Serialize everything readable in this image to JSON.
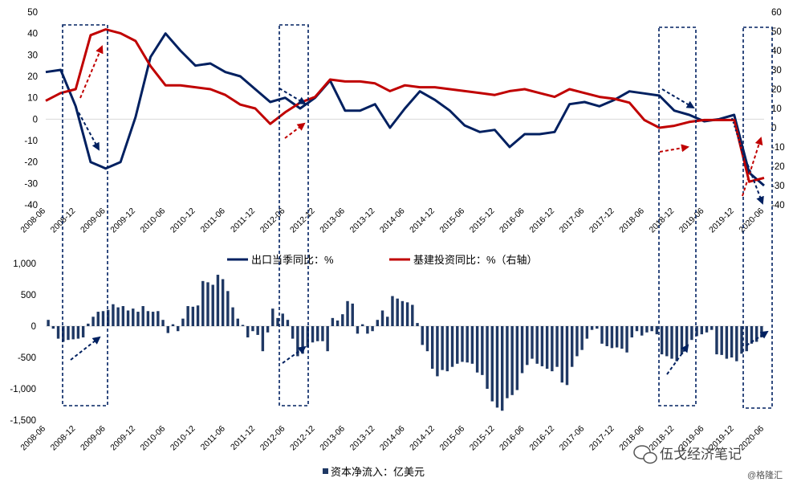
{
  "colors": {
    "export": "#002060",
    "infra": "#C00000",
    "capital": "#1F3864",
    "arrow_blue": "#002060",
    "arrow_red": "#C00000",
    "box": "#002060",
    "zero_line": "#D9D9D9"
  },
  "x_labels": [
    "2008-06",
    "2008-12",
    "2009-06",
    "2009-12",
    "2010-06",
    "2010-12",
    "2011-06",
    "2011-12",
    "2012-06",
    "2012-12",
    "2013-06",
    "2013-12",
    "2014-06",
    "2014-12",
    "2015-06",
    "2015-12",
    "2016-06",
    "2016-12",
    "2017-06",
    "2017-12",
    "2018-06",
    "2018-12",
    "2019-06",
    "2019-12",
    "2020-06"
  ],
  "watermark": {
    "main": "伍戈经济笔记",
    "sub": "@格隆汇",
    "icon": "wechat-icon"
  },
  "chart_data": [
    {
      "type": "line",
      "legend_placement": "bottom",
      "x": [
        "2008-06",
        "2008-09",
        "2008-12",
        "2009-03",
        "2009-06",
        "2009-09",
        "2009-12",
        "2010-03",
        "2010-06",
        "2010-09",
        "2010-12",
        "2011-03",
        "2011-06",
        "2011-09",
        "2011-12",
        "2012-03",
        "2012-06",
        "2012-09",
        "2012-12",
        "2013-03",
        "2013-06",
        "2013-09",
        "2013-12",
        "2014-03",
        "2014-06",
        "2014-09",
        "2014-12",
        "2015-03",
        "2015-06",
        "2015-09",
        "2015-12",
        "2016-03",
        "2016-06",
        "2016-09",
        "2016-12",
        "2017-03",
        "2017-06",
        "2017-09",
        "2017-12",
        "2018-03",
        "2018-06",
        "2018-09",
        "2018-12",
        "2019-03",
        "2019-06",
        "2019-09",
        "2019-12",
        "2020-03",
        "2020-06"
      ],
      "left_axis": {
        "ylim": [
          -40,
          50
        ],
        "ticks": [
          -40,
          -30,
          -20,
          -10,
          0,
          10,
          20,
          30,
          40,
          50
        ]
      },
      "right_axis": {
        "ylim": [
          -40,
          60
        ],
        "ticks": [
          -40,
          -30,
          -20,
          -10,
          0,
          10,
          20,
          30,
          40,
          50,
          60
        ]
      },
      "series": [
        {
          "name": "出口当季同比：%",
          "axis": "left",
          "color": "#002060",
          "values": [
            22,
            23,
            6,
            -20,
            -23,
            -20,
            1,
            29,
            40,
            32,
            25,
            26,
            22,
            20,
            14,
            8,
            10,
            5,
            10,
            18,
            4,
            4,
            7,
            -4,
            5,
            13,
            9,
            4,
            -3,
            -6,
            -5,
            -13,
            -7,
            -7,
            -6,
            7,
            8,
            6,
            9,
            13,
            12,
            11,
            4,
            2,
            -1,
            0,
            2,
            -25,
            -31
          ]
        },
        {
          "name": "基建投资同比：%（右轴）",
          "axis": "right",
          "color": "#C00000",
          "values": [
            14,
            18,
            20,
            48,
            51,
            49,
            45,
            32,
            22,
            22,
            21,
            20,
            17,
            12,
            10,
            2,
            8,
            13,
            16,
            25,
            24,
            24,
            23,
            19,
            22,
            21,
            21,
            20,
            19,
            18,
            17,
            19,
            20,
            18,
            16,
            20,
            18,
            16,
            15,
            13,
            4,
            0,
            1,
            3,
            4,
            4,
            4,
            -28,
            -26
          ]
        }
      ]
    },
    {
      "type": "bar",
      "legend_placement": "bottom",
      "ylim": [
        -1500,
        1000
      ],
      "ticks": [
        -1500,
        -1000,
        -500,
        0,
        500,
        1000
      ],
      "series": [
        {
          "name": "资本净流入：亿美元",
          "color": "#1F3864",
          "values": [
            100,
            -40,
            -200,
            -250,
            -220,
            -210,
            -200,
            -180,
            40,
            150,
            230,
            240,
            260,
            350,
            300,
            320,
            250,
            280,
            230,
            320,
            240,
            230,
            240,
            100,
            -110,
            30,
            -80,
            120,
            320,
            310,
            330,
            720,
            700,
            660,
            820,
            750,
            560,
            300,
            120,
            20,
            -180,
            -80,
            -140,
            -400,
            -100,
            280,
            130,
            200,
            100,
            -200,
            -480,
            -440,
            -340,
            -260,
            -240,
            -240,
            -400,
            130,
            90,
            190,
            400,
            360,
            -120,
            30,
            -120,
            -80,
            100,
            250,
            150,
            480,
            440,
            400,
            380,
            340,
            50,
            -300,
            -400,
            -680,
            -800,
            -700,
            -720,
            -650,
            -600,
            -570,
            -580,
            -600,
            -740,
            -780,
            -1000,
            -1200,
            -1300,
            -1350,
            -1150,
            -1100,
            -1020,
            -750,
            -620,
            -520,
            -600,
            -640,
            -680,
            -720,
            -650,
            -900,
            -940,
            -650,
            -480,
            -380,
            -200,
            -60,
            -40,
            -280,
            -320,
            -350,
            -340,
            -360,
            -420,
            -180,
            -80,
            -150,
            -100,
            -80,
            -130,
            -450,
            -480,
            -520,
            -560,
            -450,
            -340,
            -220,
            -160,
            -130,
            -100,
            -60,
            -450,
            -460,
            -520,
            -500,
            -560,
            -440,
            -400,
            -280,
            -250,
            -180
          ]
        }
      ]
    }
  ]
}
